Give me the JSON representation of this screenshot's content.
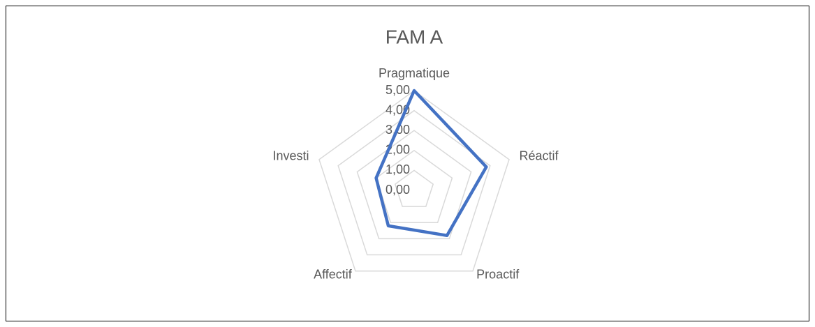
{
  "chart_data": {
    "type": "radar",
    "title": "FAM A",
    "categories": [
      "Pragmatique",
      "Réactif",
      "Proactif",
      "Affectif",
      "Investi"
    ],
    "series": [
      {
        "color": "#4472c4",
        "values": [
          5.0,
          3.8,
          2.8,
          2.2,
          2.0
        ]
      }
    ],
    "ylim": [
      0,
      5
    ],
    "yticks": [
      {
        "value": 0,
        "label": "0,00"
      },
      {
        "value": 1,
        "label": "1,00"
      },
      {
        "value": 2,
        "label": "2,00"
      },
      {
        "value": 3,
        "label": "3,00"
      },
      {
        "value": 4,
        "label": "4,00"
      },
      {
        "value": 5,
        "label": "5,00"
      }
    ],
    "grid": true
  }
}
